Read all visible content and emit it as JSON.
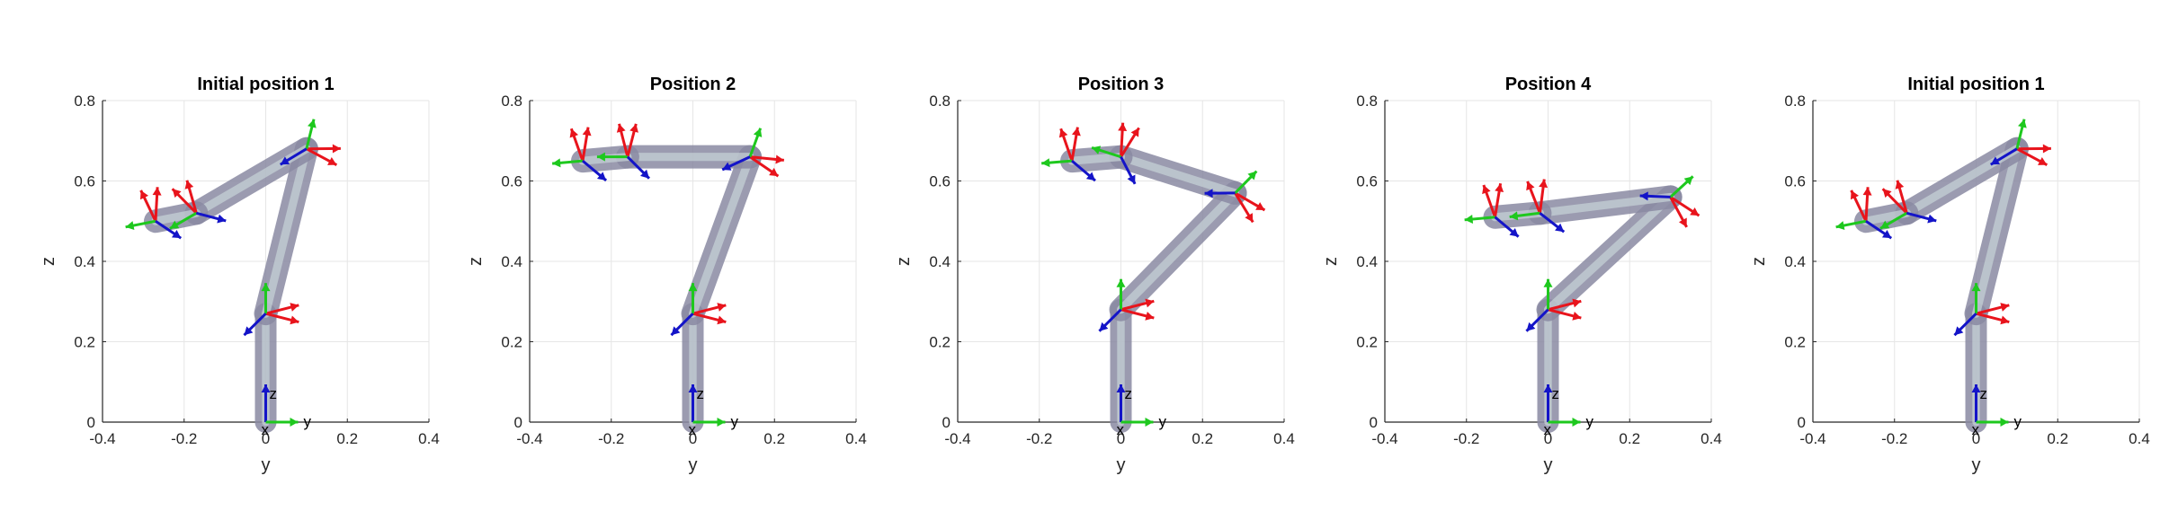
{
  "chart_data": [
    {
      "type": "line",
      "title": "Initial position 1",
      "xlabel": "y",
      "ylabel": "z",
      "xlim": [
        -0.4,
        0.4
      ],
      "ylim": [
        0,
        0.8
      ],
      "xticks": [
        "-0.4",
        "-0.2",
        "0",
        "0.2",
        "0.4"
      ],
      "yticks": [
        "0",
        "0.2",
        "0.4",
        "0.6",
        "0.8"
      ],
      "grid": true,
      "series": [
        {
          "x": [
            0.0,
            0.0,
            0.1,
            -0.17,
            -0.27
          ],
          "y": [
            0.0,
            0.27,
            0.68,
            0.52,
            0.5
          ]
        }
      ],
      "frame_labels": [
        "z",
        "x",
        "y"
      ]
    },
    {
      "type": "line",
      "title": "Position 2",
      "xlabel": "y",
      "ylabel": "z",
      "xlim": [
        -0.4,
        0.4
      ],
      "ylim": [
        0,
        0.8
      ],
      "xticks": [
        "-0.4",
        "-0.2",
        "0",
        "0.2",
        "0.4"
      ],
      "yticks": [
        "0",
        "0.2",
        "0.4",
        "0.6",
        "0.8"
      ],
      "grid": true,
      "series": [
        {
          "x": [
            0.0,
            0.0,
            0.14,
            -0.16,
            -0.27
          ],
          "y": [
            0.0,
            0.27,
            0.66,
            0.66,
            0.65
          ]
        }
      ],
      "frame_labels": [
        "z",
        "x",
        "y"
      ]
    },
    {
      "type": "line",
      "title": "Position 3",
      "xlabel": "y",
      "ylabel": "z",
      "xlim": [
        -0.4,
        0.4
      ],
      "ylim": [
        0,
        0.8
      ],
      "xticks": [
        "-0.4",
        "-0.2",
        "0",
        "0.2",
        "0.4"
      ],
      "yticks": [
        "0",
        "0.2",
        "0.4",
        "0.6",
        "0.8"
      ],
      "grid": true,
      "series": [
        {
          "x": [
            0.0,
            0.0,
            0.28,
            0.0,
            -0.12
          ],
          "y": [
            0.0,
            0.28,
            0.57,
            0.66,
            0.65
          ]
        }
      ],
      "frame_labels": [
        "z",
        "x",
        "y"
      ]
    },
    {
      "type": "line",
      "title": "Position 4",
      "xlabel": "y",
      "ylabel": "z",
      "xlim": [
        -0.4,
        0.4
      ],
      "ylim": [
        0,
        0.8
      ],
      "xticks": [
        "-0.4",
        "-0.2",
        "0",
        "0.2",
        "0.4"
      ],
      "yticks": [
        "0",
        "0.2",
        "0.4",
        "0.6",
        "0.8"
      ],
      "grid": true,
      "series": [
        {
          "x": [
            0.0,
            0.0,
            0.3,
            -0.02,
            -0.13
          ],
          "y": [
            0.0,
            0.28,
            0.56,
            0.52,
            0.51
          ]
        }
      ],
      "frame_labels": [
        "z",
        "x",
        "y"
      ]
    },
    {
      "type": "line",
      "title": "Initial position 1",
      "xlabel": "y",
      "ylabel": "z",
      "xlim": [
        -0.4,
        0.4
      ],
      "ylim": [
        0,
        0.8
      ],
      "xticks": [
        "-0.4",
        "-0.2",
        "0",
        "0.2",
        "0.4"
      ],
      "yticks": [
        "0",
        "0.2",
        "0.4",
        "0.6",
        "0.8"
      ],
      "grid": true,
      "series": [
        {
          "x": [
            0.0,
            0.0,
            0.1,
            -0.17,
            -0.27
          ],
          "y": [
            0.0,
            0.27,
            0.68,
            0.52,
            0.5
          ]
        }
      ],
      "frame_labels": [
        "z",
        "x",
        "y"
      ]
    }
  ],
  "colors": {
    "link": "#8a8aa3",
    "link_light": "#c8d4d8",
    "axis_x": "#e8141c",
    "axis_y": "#1ec81e",
    "axis_z": "#1414c8",
    "grid": "#e6e6e6",
    "frame": "#262626"
  }
}
